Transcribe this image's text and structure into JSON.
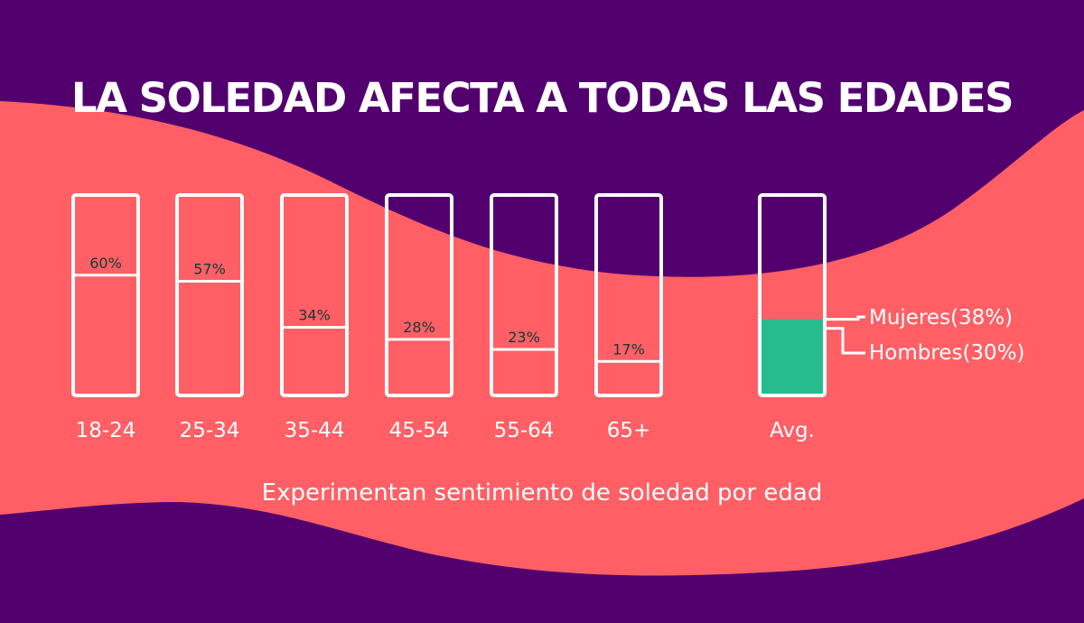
{
  "title": "LA SOLEDAD AFECTA A TODAS LAS EDADES",
  "subtitle": "Experimentan sentimiento de soledad por edad",
  "colors": {
    "background": "#52006e",
    "wave": "#ff5f65",
    "bar_box": "#ffffff",
    "bar_fill": "#ff5f65",
    "avg_fill": "#27bc8e",
    "value_label": "#123a3a",
    "text": "#ffffff"
  },
  "chart_data": {
    "type": "bar",
    "categories": [
      "18-24",
      "25-34",
      "35-44",
      "45-54",
      "55-64",
      "65+",
      "Avg."
    ],
    "values": [
      60,
      57,
      34,
      28,
      23,
      17,
      null
    ],
    "value_labels": [
      "60%",
      "57%",
      "34%",
      "28%",
      "23%",
      "17%",
      ""
    ],
    "ylim": [
      0,
      100
    ],
    "avg": {
      "category": "Avg.",
      "series": [
        {
          "name": "Mujeres",
          "label": "Mujeres(38%)",
          "value": 38
        },
        {
          "name": "Hombres",
          "label": "Hombres(30%)",
          "value": 30
        }
      ]
    },
    "title": "LA SOLEDAD AFECTA A TODAS LAS EDADES",
    "xlabel": "Experimentan sentimiento de soledad por edad",
    "ylabel": "",
    "grid": false
  }
}
